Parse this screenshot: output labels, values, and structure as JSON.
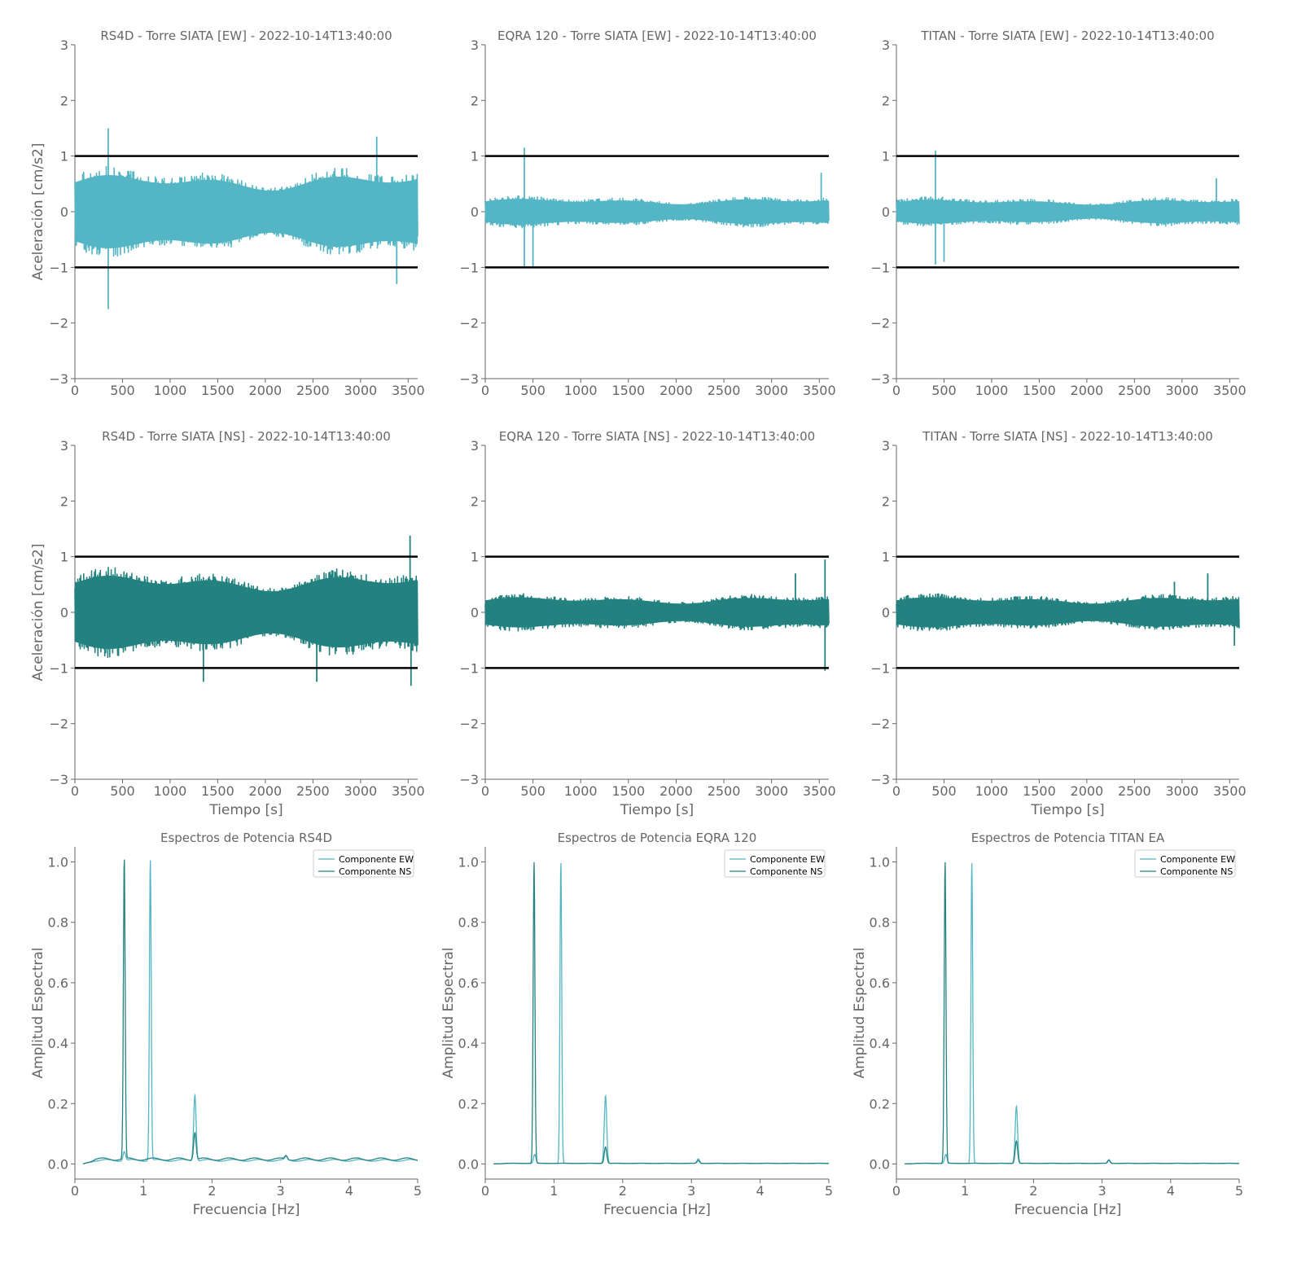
{
  "colors": {
    "ew": "#54b6c4",
    "ns": "#238280",
    "threshold": "#000000",
    "axis": "#666666"
  },
  "chart_data": [
    {
      "type": "line",
      "title": "RS4D - Torre SIATA [EW] - 2022-10-14T13:40:00",
      "xlabel": "",
      "ylabel": "Aceleración [cm/s2]",
      "xlim": [
        0,
        3600
      ],
      "ylim": [
        -3,
        3
      ],
      "xticks": [
        "0",
        "500",
        "1000",
        "1500",
        "2000",
        "2500",
        "3000",
        "3500"
      ],
      "yticks": [
        "−3",
        "−2",
        "−1",
        "0",
        "1",
        "2",
        "3"
      ],
      "thresholds": [
        1,
        -1
      ],
      "series": [
        {
          "component": "ew",
          "duration_s": 3600,
          "typical_amplitude": 0.85,
          "peaks": [
            {
              "x": 350,
              "y": 1.5
            },
            {
              "x": 350,
              "y": -1.75
            },
            {
              "x": 3170,
              "y": 1.35
            },
            {
              "x": 3380,
              "y": -1.3
            }
          ]
        }
      ]
    },
    {
      "type": "line",
      "title": "EQRA 120 - Torre SIATA [EW] - 2022-10-14T13:40:00",
      "xlabel": "",
      "ylabel": "",
      "xlim": [
        0,
        3600
      ],
      "ylim": [
        -3,
        3
      ],
      "xticks": [
        "0",
        "500",
        "1000",
        "1500",
        "2000",
        "2500",
        "3000",
        "3500"
      ],
      "yticks": [
        "−3",
        "−2",
        "−1",
        "0",
        "1",
        "2",
        "3"
      ],
      "thresholds": [
        1,
        -1
      ],
      "series": [
        {
          "component": "ew",
          "duration_s": 3600,
          "typical_amplitude": 0.3,
          "peaks": [
            {
              "x": 410,
              "y": 1.15
            },
            {
              "x": 410,
              "y": -1.0
            },
            {
              "x": 500,
              "y": -1.0
            },
            {
              "x": 3520,
              "y": 0.7
            }
          ]
        }
      ]
    },
    {
      "type": "line",
      "title": "TITAN - Torre SIATA [EW] - 2022-10-14T13:40:00",
      "xlabel": "",
      "ylabel": "",
      "xlim": [
        0,
        3600
      ],
      "ylim": [
        -3,
        3
      ],
      "xticks": [
        "0",
        "500",
        "1000",
        "1500",
        "2000",
        "2500",
        "3000",
        "3500"
      ],
      "yticks": [
        "−3",
        "−2",
        "−1",
        "0",
        "1",
        "2",
        "3"
      ],
      "thresholds": [
        1,
        -1
      ],
      "series": [
        {
          "component": "ew",
          "duration_s": 3600,
          "typical_amplitude": 0.28,
          "peaks": [
            {
              "x": 410,
              "y": 1.1
            },
            {
              "x": 410,
              "y": -0.95
            },
            {
              "x": 500,
              "y": -0.9
            },
            {
              "x": 3360,
              "y": 0.6
            }
          ]
        }
      ]
    },
    {
      "type": "line",
      "title": "RS4D - Torre SIATA [NS] - 2022-10-14T13:40:00",
      "xlabel": "Tiempo [s]",
      "ylabel": "Aceleración [cm/s2]",
      "xlim": [
        0,
        3600
      ],
      "ylim": [
        -3,
        3
      ],
      "xticks": [
        "0",
        "500",
        "1000",
        "1500",
        "2000",
        "2500",
        "3000",
        "3500"
      ],
      "yticks": [
        "−3",
        "−2",
        "−1",
        "0",
        "1",
        "2",
        "3"
      ],
      "thresholds": [
        1,
        -1
      ],
      "series": [
        {
          "component": "ns",
          "duration_s": 3600,
          "typical_amplitude": 0.85,
          "peaks": [
            {
              "x": 1350,
              "y": -1.25
            },
            {
              "x": 2540,
              "y": -1.25
            },
            {
              "x": 3520,
              "y": 1.38
            },
            {
              "x": 3530,
              "y": -1.32
            }
          ]
        }
      ]
    },
    {
      "type": "line",
      "title": "EQRA 120 - Torre SIATA [NS] - 2022-10-14T13:40:00",
      "xlabel": "Tiempo [s]",
      "ylabel": "",
      "xlim": [
        0,
        3600
      ],
      "ylim": [
        -3,
        3
      ],
      "xticks": [
        "0",
        "500",
        "1000",
        "1500",
        "2000",
        "2500",
        "3000",
        "3500"
      ],
      "yticks": [
        "−3",
        "−2",
        "−1",
        "0",
        "1",
        "2",
        "3"
      ],
      "thresholds": [
        1,
        -1
      ],
      "series": [
        {
          "component": "ns",
          "duration_s": 3600,
          "typical_amplitude": 0.35,
          "peaks": [
            {
              "x": 3560,
              "y": 0.95
            },
            {
              "x": 3560,
              "y": -1.05
            },
            {
              "x": 3250,
              "y": 0.7
            }
          ]
        }
      ]
    },
    {
      "type": "line",
      "title": "TITAN - Torre SIATA [NS] - 2022-10-14T13:40:00",
      "xlabel": "Tiempo [s]",
      "ylabel": "",
      "xlim": [
        0,
        3600
      ],
      "ylim": [
        -3,
        3
      ],
      "xticks": [
        "0",
        "500",
        "1000",
        "1500",
        "2000",
        "2500",
        "3000",
        "3500"
      ],
      "yticks": [
        "−3",
        "−2",
        "−1",
        "0",
        "1",
        "2",
        "3"
      ],
      "thresholds": [
        1,
        -1
      ],
      "series": [
        {
          "component": "ns",
          "duration_s": 3600,
          "typical_amplitude": 0.35,
          "peaks": [
            {
              "x": 3270,
              "y": 0.7
            },
            {
              "x": 3550,
              "y": -0.6
            },
            {
              "x": 2920,
              "y": 0.55
            }
          ]
        }
      ]
    },
    {
      "type": "line",
      "title": "Espectros de Potencia RS4D",
      "xlabel": "Frecuencia [Hz]",
      "ylabel": "Amplitud Espectral",
      "xlim": [
        0,
        5
      ],
      "ylim": [
        -0.05,
        1.05
      ],
      "xticks": [
        "0",
        "1",
        "2",
        "3",
        "4",
        "5"
      ],
      "yticks": [
        "0.0",
        "0.2",
        "0.4",
        "0.6",
        "0.8",
        "1.0"
      ],
      "legend": "top-right",
      "series": [
        {
          "name": "Componente EW",
          "component": "ew",
          "baseline": 0.012,
          "peaks": [
            {
              "f": 0.72,
              "a": 0.03
            },
            {
              "f": 1.1,
              "a": 1.0
            },
            {
              "f": 1.75,
              "a": 0.22
            },
            {
              "f": 3.08,
              "a": 0.012
            }
          ]
        },
        {
          "name": "Componente NS",
          "component": "ns",
          "baseline": 0.016,
          "peaks": [
            {
              "f": 0.72,
              "a": 1.0
            },
            {
              "f": 1.75,
              "a": 0.09
            },
            {
              "f": 3.08,
              "a": 0.012
            }
          ]
        }
      ]
    },
    {
      "type": "line",
      "title": "Espectros de Potencia EQRA 120",
      "xlabel": "Frecuencia [Hz]",
      "ylabel": "Amplitud Espectral",
      "xlim": [
        0,
        5
      ],
      "ylim": [
        -0.05,
        1.05
      ],
      "xticks": [
        "0",
        "1",
        "2",
        "3",
        "4",
        "5"
      ],
      "yticks": [
        "0.0",
        "0.2",
        "0.4",
        "0.6",
        "0.8",
        "1.0"
      ],
      "legend": "top-right",
      "series": [
        {
          "name": "Componente EW",
          "component": "ew",
          "baseline": 0.002,
          "peaks": [
            {
              "f": 0.72,
              "a": 0.03
            },
            {
              "f": 1.1,
              "a": 1.0
            },
            {
              "f": 1.75,
              "a": 0.225
            },
            {
              "f": 3.1,
              "a": 0.015
            }
          ]
        },
        {
          "name": "Componente NS",
          "component": "ns",
          "baseline": 0.002,
          "peaks": [
            {
              "f": 0.71,
              "a": 1.0
            },
            {
              "f": 1.75,
              "a": 0.055
            },
            {
              "f": 3.1,
              "a": 0.01
            }
          ]
        }
      ]
    },
    {
      "type": "line",
      "title": "Espectros de Potencia TITAN EA",
      "xlabel": "Frecuencia [Hz]",
      "ylabel": "Amplitud Espectral",
      "xlim": [
        0,
        5
      ],
      "ylim": [
        -0.05,
        1.05
      ],
      "xticks": [
        "0",
        "1",
        "2",
        "3",
        "4",
        "5"
      ],
      "yticks": [
        "0.0",
        "0.2",
        "0.4",
        "0.6",
        "0.8",
        "1.0"
      ],
      "legend": "top-right",
      "series": [
        {
          "name": "Componente EW",
          "component": "ew",
          "baseline": 0.002,
          "peaks": [
            {
              "f": 0.72,
              "a": 0.03
            },
            {
              "f": 1.1,
              "a": 1.0
            },
            {
              "f": 1.75,
              "a": 0.19
            },
            {
              "f": 3.1,
              "a": 0.012
            }
          ]
        },
        {
          "name": "Componente NS",
          "component": "ns",
          "baseline": 0.002,
          "peaks": [
            {
              "f": 0.71,
              "a": 1.0
            },
            {
              "f": 1.75,
              "a": 0.075
            },
            {
              "f": 3.1,
              "a": 0.01
            }
          ]
        }
      ]
    }
  ]
}
